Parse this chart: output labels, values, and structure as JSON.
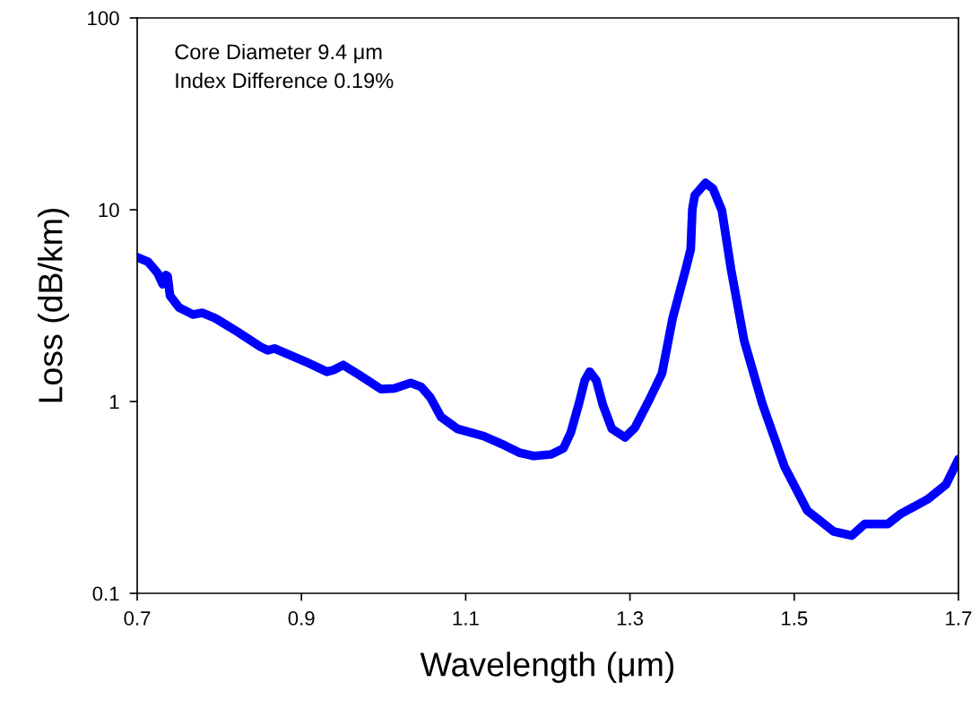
{
  "chart_data": {
    "type": "line",
    "xlabel": "Wavelength (μm)",
    "ylabel": "Loss (dB/km)",
    "annotations": [
      "Core Diameter 9.4 μm",
      "Index Difference 0.19%"
    ],
    "log": "y",
    "grid": false,
    "line_style": "solid",
    "marker": "none",
    "xlim": [
      0.7,
      1.7
    ],
    "xticks": [
      0.7,
      0.9,
      1.1,
      1.3,
      1.5,
      1.7
    ],
    "ylim": [
      0.1,
      100
    ],
    "yticks": [
      0.1,
      1,
      10,
      100
    ],
    "x": [
      0.7,
      0.713,
      0.725,
      0.731,
      0.735,
      0.737,
      0.74,
      0.751,
      0.768,
      0.779,
      0.795,
      0.822,
      0.85,
      0.859,
      0.867,
      0.904,
      0.931,
      0.939,
      0.951,
      0.97,
      0.997,
      1.013,
      1.033,
      1.046,
      1.057,
      1.07,
      1.09,
      1.122,
      1.144,
      1.166,
      1.183,
      1.204,
      1.219,
      1.228,
      1.238,
      1.245,
      1.251,
      1.259,
      1.267,
      1.278,
      1.294,
      1.306,
      1.324,
      1.339,
      1.352,
      1.368,
      1.374,
      1.376,
      1.379,
      1.392,
      1.401,
      1.412,
      1.423,
      1.439,
      1.461,
      1.488,
      1.516,
      1.548,
      1.57,
      1.586,
      1.614,
      1.63,
      1.663,
      1.685,
      1.7
    ],
    "series": [
      {
        "color": "#0000ff",
        "values": [
          5.65,
          5.36,
          4.66,
          4.09,
          4.56,
          4.5,
          3.56,
          3.09,
          2.84,
          2.9,
          2.72,
          2.31,
          1.93,
          1.85,
          1.89,
          1.62,
          1.43,
          1.46,
          1.55,
          1.38,
          1.16,
          1.17,
          1.25,
          1.19,
          1.05,
          0.83,
          0.72,
          0.66,
          0.6,
          0.54,
          0.52,
          0.53,
          0.57,
          0.69,
          0.98,
          1.29,
          1.43,
          1.29,
          0.96,
          0.72,
          0.65,
          0.73,
          1.03,
          1.4,
          2.72,
          4.91,
          6.23,
          10.1,
          11.9,
          13.8,
          12.9,
          9.9,
          4.91,
          2.08,
          0.98,
          0.46,
          0.27,
          0.21,
          0.2,
          0.23,
          0.23,
          0.26,
          0.31,
          0.37,
          0.5
        ]
      }
    ]
  }
}
